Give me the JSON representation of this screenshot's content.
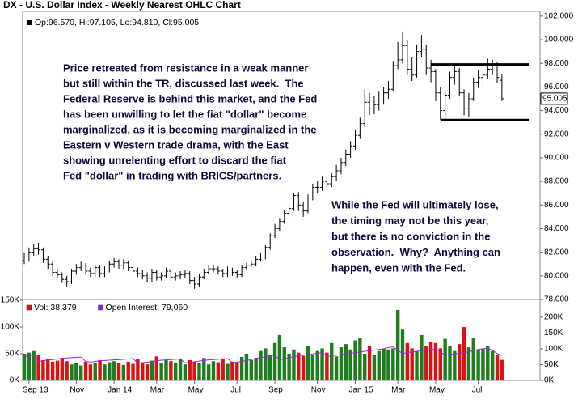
{
  "chart_data": [
    {
      "type": "ohlc",
      "title": "DX - U.S. Dollar Index - Weekly Nearest OHLC Chart",
      "info": "Op:96.570, Hi:97.105, Lo:94.810, Cl:95.005",
      "color": "#000000",
      "open": [
        81.3,
        81.6,
        82.0,
        82.3,
        82.2,
        81.4,
        81.0,
        80.3,
        80.1,
        79.7,
        79.5,
        80.4,
        80.7,
        80.9,
        80.4,
        80.2,
        80.7,
        80.2,
        80.5,
        81.0,
        81.2,
        80.9,
        81.1,
        80.7,
        80.4,
        80.2,
        80.0,
        79.8,
        80.3,
        79.9,
        80.0,
        80.4,
        79.9,
        80.0,
        80.1,
        80.2,
        79.6,
        79.3,
        79.9,
        80.3,
        80.6,
        80.6,
        80.4,
        80.2,
        80.5,
        80.3,
        80.1,
        80.7,
        80.9,
        81.0,
        81.4,
        81.6,
        82.4,
        83.4,
        84.0,
        84.6,
        85.3,
        85.7,
        86.8,
        86.0,
        85.5,
        86.6,
        87.5,
        87.5,
        88.0,
        87.8,
        88.4,
        88.9,
        89.6,
        90.3,
        91.0,
        91.9,
        92.9,
        94.7,
        94.2,
        94.5,
        94.9,
        95.5,
        95.8,
        97.8,
        98.3,
        99.5,
        97.5,
        97.0,
        99.0,
        99.2,
        97.6,
        97.3,
        95.5,
        94.0,
        95.3,
        96.8,
        97.3,
        95.5,
        94.2,
        95.0,
        96.4,
        96.8,
        97.0,
        97.5,
        97.8,
        96.57
      ],
      "high": [
        82.0,
        82.4,
        82.7,
        82.8,
        82.4,
        81.7,
        81.2,
        80.6,
        80.3,
        80.0,
        80.6,
        81.0,
        81.2,
        81.1,
        80.7,
        80.9,
        80.9,
        80.8,
        81.3,
        81.5,
        81.4,
        81.4,
        81.3,
        81.0,
        80.7,
        80.5,
        80.3,
        80.6,
        80.5,
        80.3,
        80.7,
        80.6,
        80.3,
        80.4,
        80.5,
        80.4,
        79.9,
        80.2,
        80.6,
        80.9,
        80.9,
        80.8,
        80.6,
        80.8,
        80.7,
        80.5,
        80.9,
        81.1,
        81.3,
        81.7,
        81.9,
        82.6,
        83.6,
        84.4,
        84.9,
        85.6,
        86.0,
        87.0,
        87.1,
        86.3,
        86.9,
        87.8,
        88.0,
        88.4,
        88.3,
        88.7,
        89.4,
        90.0,
        90.7,
        91.4,
        92.4,
        93.4,
        95.8,
        95.5,
        95.2,
        95.6,
        96.0,
        96.5,
        98.2,
        99.8,
        100.7,
        100.0,
        98.5,
        99.6,
        100.4,
        99.6,
        98.3,
        97.5,
        96.0,
        95.6,
        97.3,
        97.9,
        97.6,
        95.8,
        95.5,
        96.8,
        97.4,
        97.7,
        98.4,
        98.3,
        98.1,
        97.105
      ],
      "low": [
        81.0,
        81.2,
        81.7,
        81.8,
        81.1,
        80.6,
        80.0,
        79.8,
        79.4,
        79.1,
        79.3,
        80.1,
        80.4,
        80.1,
        79.9,
        79.9,
        79.9,
        79.9,
        80.3,
        80.7,
        80.6,
        80.6,
        80.4,
        80.1,
        79.9,
        79.7,
        79.5,
        79.5,
        79.6,
        79.6,
        79.8,
        79.6,
        79.6,
        79.7,
        79.8,
        79.3,
        78.9,
        79.1,
        79.7,
        80.1,
        80.3,
        80.1,
        79.9,
        79.9,
        80.0,
        79.8,
        79.9,
        80.5,
        80.7,
        80.8,
        81.2,
        81.4,
        82.2,
        83.2,
        83.8,
        84.4,
        85.0,
        85.5,
        85.5,
        85.0,
        85.3,
        86.4,
        87.0,
        87.2,
        87.4,
        87.5,
        88.0,
        88.6,
        89.3,
        90.0,
        90.7,
        91.6,
        92.6,
        93.6,
        93.7,
        94.0,
        94.5,
        95.0,
        95.6,
        97.5,
        98.0,
        97.0,
        96.5,
        96.8,
        98.5,
        97.0,
        96.4,
        94.8,
        93.2,
        93.3,
        95.0,
        96.2,
        95.2,
        93.6,
        93.5,
        94.8,
        95.9,
        96.2,
        96.7,
        97.0,
        96.3,
        94.81
      ],
      "close": [
        81.6,
        82.0,
        82.3,
        82.2,
        81.4,
        81.0,
        80.3,
        80.1,
        79.7,
        79.5,
        80.4,
        80.7,
        80.9,
        80.4,
        80.2,
        80.7,
        80.2,
        80.5,
        81.0,
        81.2,
        80.9,
        81.1,
        80.7,
        80.4,
        80.2,
        80.0,
        79.8,
        80.3,
        79.9,
        80.0,
        80.4,
        79.9,
        80.0,
        80.1,
        80.2,
        79.6,
        79.3,
        79.9,
        80.3,
        80.6,
        80.6,
        80.4,
        80.2,
        80.5,
        80.3,
        80.1,
        80.7,
        80.9,
        81.0,
        81.4,
        81.6,
        82.4,
        83.4,
        84.0,
        84.6,
        85.3,
        85.7,
        86.8,
        86.0,
        85.5,
        86.6,
        87.5,
        87.5,
        88.0,
        87.8,
        88.4,
        88.9,
        89.6,
        90.3,
        91.0,
        91.9,
        92.9,
        94.7,
        94.2,
        94.5,
        94.9,
        95.5,
        95.8,
        97.8,
        98.3,
        99.5,
        97.5,
        97.0,
        99.0,
        99.2,
        97.6,
        97.3,
        95.5,
        94.0,
        95.3,
        96.8,
        97.3,
        95.5,
        94.2,
        95.0,
        96.4,
        96.8,
        97.0,
        97.5,
        97.8,
        96.8,
        95.005
      ],
      "last_label": "95.005",
      "ylim": [
        78,
        102.4
      ],
      "yticks": [
        {
          "value": 78,
          "label": "78.000"
        },
        {
          "value": 80,
          "label": "80.000"
        },
        {
          "value": 82,
          "label": "82.000"
        },
        {
          "value": 84,
          "label": "84.000"
        },
        {
          "value": 86,
          "label": "86.000"
        },
        {
          "value": 88,
          "label": "88.000"
        },
        {
          "value": 90,
          "label": "90.000"
        },
        {
          "value": 92,
          "label": "92.000"
        },
        {
          "value": 94,
          "label": "94.000"
        },
        {
          "value": 96,
          "label": "96.000"
        },
        {
          "value": 98,
          "label": "98.000"
        },
        {
          "value": 100,
          "label": "100.000"
        },
        {
          "value": 102,
          "label": "102.000"
        }
      ],
      "levels": [
        97.9,
        93.2
      ],
      "grid": false,
      "annotations": [
        {
          "lines": [
            "Price retreated from resistance in a weak manner",
            "but still within the TR, discussed last week.  The",
            "Federal Reserve is behind this market, and the Fed",
            "has been unwilling to let the fiat \"dollar\" become",
            "marginalized, as it is becoming marginalized in the",
            "Eastern v Western trade drama, with the East",
            "showing unrelenting effort to discard the fiat",
            "Fed \"dollar\" in trading with BRICS/partners."
          ]
        },
        {
          "lines": [
            "While the Fed will ultimately lose,",
            "the timing may not be this year,",
            "but there is no conviction in the",
            "observation.  Why?  Anything can",
            "happen, even with the Fed."
          ]
        }
      ]
    },
    {
      "type": "bar",
      "categories": [
        null,
        "Sep 13",
        null,
        null,
        null,
        null,
        null,
        null,
        null,
        null,
        null,
        "Nov",
        null,
        null,
        null,
        null,
        null,
        null,
        null,
        "Jan 14",
        null,
        null,
        null,
        null,
        null,
        null,
        null,
        null,
        "Mar",
        null,
        null,
        null,
        null,
        null,
        null,
        null,
        "May",
        null,
        null,
        null,
        null,
        null,
        null,
        null,
        null,
        "Jul",
        null,
        null,
        null,
        null,
        null,
        null,
        null,
        "Sep",
        null,
        null,
        null,
        null,
        null,
        null,
        null,
        null,
        "Nov",
        null,
        null,
        null,
        null,
        null,
        null,
        null,
        "Jan 15",
        null,
        null,
        null,
        null,
        null,
        null,
        null,
        null,
        "Mar",
        null,
        null,
        null,
        null,
        null,
        null,
        null,
        "May",
        null,
        null,
        null,
        null,
        null,
        null,
        null,
        null,
        "Jul",
        null,
        null,
        null,
        null,
        null
      ],
      "series": [
        {
          "name": "Vol: 38,379",
          "up_color": "#1e7d1e",
          "down_color": "#dd1111",
          "values": [
            50000,
            52000,
            55000,
            48000,
            38000,
            40000,
            35000,
            37000,
            42000,
            36000,
            30000,
            33000,
            28000,
            35000,
            30000,
            32000,
            38000,
            30000,
            34000,
            36000,
            33000,
            29000,
            35000,
            31000,
            40000,
            34000,
            30000,
            37000,
            45000,
            33000,
            38000,
            36000,
            32000,
            41000,
            30000,
            38000,
            35000,
            33000,
            42000,
            30000,
            36000,
            34000,
            40000,
            31000,
            35000,
            33000,
            44000,
            50000,
            38000,
            42000,
            55000,
            60000,
            48000,
            70000,
            85000,
            62000,
            50000,
            58000,
            52000,
            46000,
            65000,
            48000,
            55000,
            60000,
            52000,
            70000,
            45000,
            62000,
            68000,
            58000,
            75000,
            80000,
            50000,
            65000,
            48000,
            55000,
            60000,
            58000,
            60000,
            132000,
            95000,
            70000,
            60000,
            55000,
            85000,
            65000,
            72000,
            70000,
            60000,
            78000,
            65000,
            55000,
            68000,
            100000,
            62000,
            80000,
            58000,
            60000,
            65000,
            55000,
            48000,
            38379
          ]
        },
        {
          "name": "Open Interest: 79,060",
          "type": "line",
          "axis": "y2",
          "color": "#a020e0",
          "values": [
            75000,
            78000,
            80000,
            60000,
            62000,
            65000,
            66000,
            68000,
            70000,
            71000,
            72000,
            73000,
            74000,
            60000,
            58000,
            60000,
            62000,
            63000,
            64000,
            65000,
            66000,
            67000,
            68000,
            69000,
            55000,
            56000,
            58000,
            60000,
            62000,
            64000,
            65000,
            66000,
            67000,
            68000,
            55000,
            57000,
            59000,
            61000,
            63000,
            65000,
            66000,
            67000,
            68000,
            69000,
            56000,
            58000,
            60000,
            63000,
            66000,
            70000,
            72000,
            75000,
            78000,
            80000,
            65000,
            68000,
            72000,
            75000,
            78000,
            80000,
            82000,
            84000,
            86000,
            88000,
            75000,
            78000,
            80000,
            82000,
            84000,
            86000,
            88000,
            90000,
            92000,
            94000,
            96000,
            98000,
            100000,
            104000,
            106000,
            95000,
            85000,
            88000,
            90000,
            92000,
            94000,
            96000,
            98000,
            100000,
            90000,
            80000,
            82000,
            84000,
            86000,
            88000,
            90000,
            95000,
            98000,
            100000,
            102000,
            95000,
            85000,
            79060
          ]
        }
      ],
      "ylim": [
        0,
        150000
      ],
      "yticks": [
        {
          "value": 0,
          "label": "0K"
        },
        {
          "value": 50000,
          "label": "50K"
        },
        {
          "value": 100000,
          "label": "100K"
        },
        {
          "value": 150000,
          "label": "150K"
        }
      ],
      "y2lim": [
        0,
        256000
      ],
      "y2ticks": [
        {
          "value": 0,
          "label": "0K"
        },
        {
          "value": 50000,
          "label": "50K"
        },
        {
          "value": 100000,
          "label": "100K"
        },
        {
          "value": 150000,
          "label": "150K"
        },
        {
          "value": 200000,
          "label": "200K"
        }
      ]
    }
  ]
}
